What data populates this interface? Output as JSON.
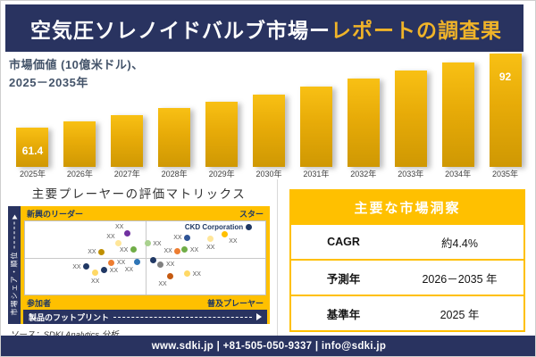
{
  "header": {
    "title_main": "空気圧ソレノイドバルブ市場ー",
    "title_accent": "レポートの調査果"
  },
  "chart_data": [
    {
      "type": "bar",
      "title": "市場価値 (10億米ドル)、\n2025－2035年",
      "ylabel": "市場価値 (10億米ドル)",
      "xlabel": "",
      "categories": [
        "2025年",
        "2026年",
        "2027年",
        "2028年",
        "2029年",
        "2030年",
        "2031年",
        "2032年",
        "2033年",
        "2034年",
        "2035年"
      ],
      "values": [
        61.4,
        63.9,
        66.6,
        69.3,
        72.2,
        75.2,
        78.3,
        81.5,
        84.9,
        88.4,
        92
      ],
      "data_labels": [
        {
          "index": 0,
          "text": "61.4"
        },
        {
          "index": 10,
          "text": "92"
        }
      ],
      "axis_min": 45,
      "grid": false,
      "legend": "none",
      "bar_color": "#E7AB08"
    },
    {
      "type": "scatter",
      "title": "主要プレーヤーの評価マトリックス",
      "xlabel": "製品のフットプリント",
      "ylabel": "市場シェア・順位",
      "quadrants": {
        "top_left": "新興のリーダー",
        "top_right": "スター",
        "bottom_left": "参加者",
        "bottom_right": "普及プレーヤー"
      },
      "source": "ソース：SDKI Analytics 分析",
      "points": [
        {
          "x_pct": 42.5,
          "y_pct": 16.5,
          "color": "#7030A0",
          "label": "XX",
          "label_pos": "left-above"
        },
        {
          "x_pct": 38.9,
          "y_pct": 30.0,
          "color": "#FFE699",
          "label": "XX",
          "label_pos": "left-above"
        },
        {
          "x_pct": 45.1,
          "y_pct": 38.5,
          "color": "#70AD47",
          "label": "XX",
          "label_pos": "left"
        },
        {
          "x_pct": 31.8,
          "y_pct": 42.0,
          "color": "#BF8F00",
          "label": "XX",
          "label_pos": "left"
        },
        {
          "x_pct": 93.0,
          "y_pct": 7.5,
          "color": "#1F3864",
          "label": "CKD Corporation",
          "label_pos": "left",
          "emphasis": true
        },
        {
          "x_pct": 67.5,
          "y_pct": 22.5,
          "color": "#2F5496",
          "label": "XX",
          "label_pos": "left"
        },
        {
          "x_pct": 83.0,
          "y_pct": 18.0,
          "color": "#FFC000",
          "label": "XX",
          "label_pos": "right-below"
        },
        {
          "x_pct": 77.0,
          "y_pct": 24.0,
          "color": "#FFE699",
          "label": "XX",
          "label_pos": "below"
        },
        {
          "x_pct": 51.0,
          "y_pct": 30.0,
          "color": "#A9D18E",
          "label": "XX",
          "label_pos": "right"
        },
        {
          "x_pct": 63.5,
          "y_pct": 40.5,
          "color": "#ED7D31",
          "label": "XX",
          "label_pos": "left"
        },
        {
          "x_pct": 66.5,
          "y_pct": 38.5,
          "color": "#70AD47",
          "label": "XX",
          "label_pos": "right"
        },
        {
          "x_pct": 36.0,
          "y_pct": 56.5,
          "color": "#ED7D31",
          "label": "XX",
          "label_pos": "right"
        },
        {
          "x_pct": 46.5,
          "y_pct": 55.5,
          "color": "#2E75B6",
          "label": "XX",
          "label_pos": "below-left"
        },
        {
          "x_pct": 25.5,
          "y_pct": 62.0,
          "color": "#203864",
          "label": "XX",
          "label_pos": "left"
        },
        {
          "x_pct": 33.0,
          "y_pct": 66.5,
          "color": "#203864",
          "label": "XX",
          "label_pos": "right"
        },
        {
          "x_pct": 29.0,
          "y_pct": 70.5,
          "color": "#FFD966",
          "label": "XX",
          "label_pos": "below"
        },
        {
          "x_pct": 53.5,
          "y_pct": 53.5,
          "color": "#203864",
          "label": "",
          "label_pos": "right"
        },
        {
          "x_pct": 56.5,
          "y_pct": 59.0,
          "color": "#808080",
          "label": "XX",
          "label_pos": "right"
        },
        {
          "x_pct": 60.5,
          "y_pct": 75.0,
          "color": "#C55A11",
          "label": "XX",
          "label_pos": "below-left"
        },
        {
          "x_pct": 67.5,
          "y_pct": 71.5,
          "color": "#FFD966",
          "label": "XX",
          "label_pos": "right"
        }
      ]
    }
  ],
  "insights": {
    "title": "主要な市場洞察",
    "rows": [
      {
        "label": "CAGR",
        "value": "約4.4%"
      },
      {
        "label": "予測年",
        "value": "2026－2035 年"
      },
      {
        "label": "基準年",
        "value": "2025 年"
      }
    ]
  },
  "footer": {
    "text": "www.sdki.jp | +81-505-050-9337 | info@sdki.jp"
  },
  "colors": {
    "navy": "#293360",
    "gold": "#FFC000",
    "bar_gold": "#E7AB08",
    "accent_text": "#F0B429"
  }
}
